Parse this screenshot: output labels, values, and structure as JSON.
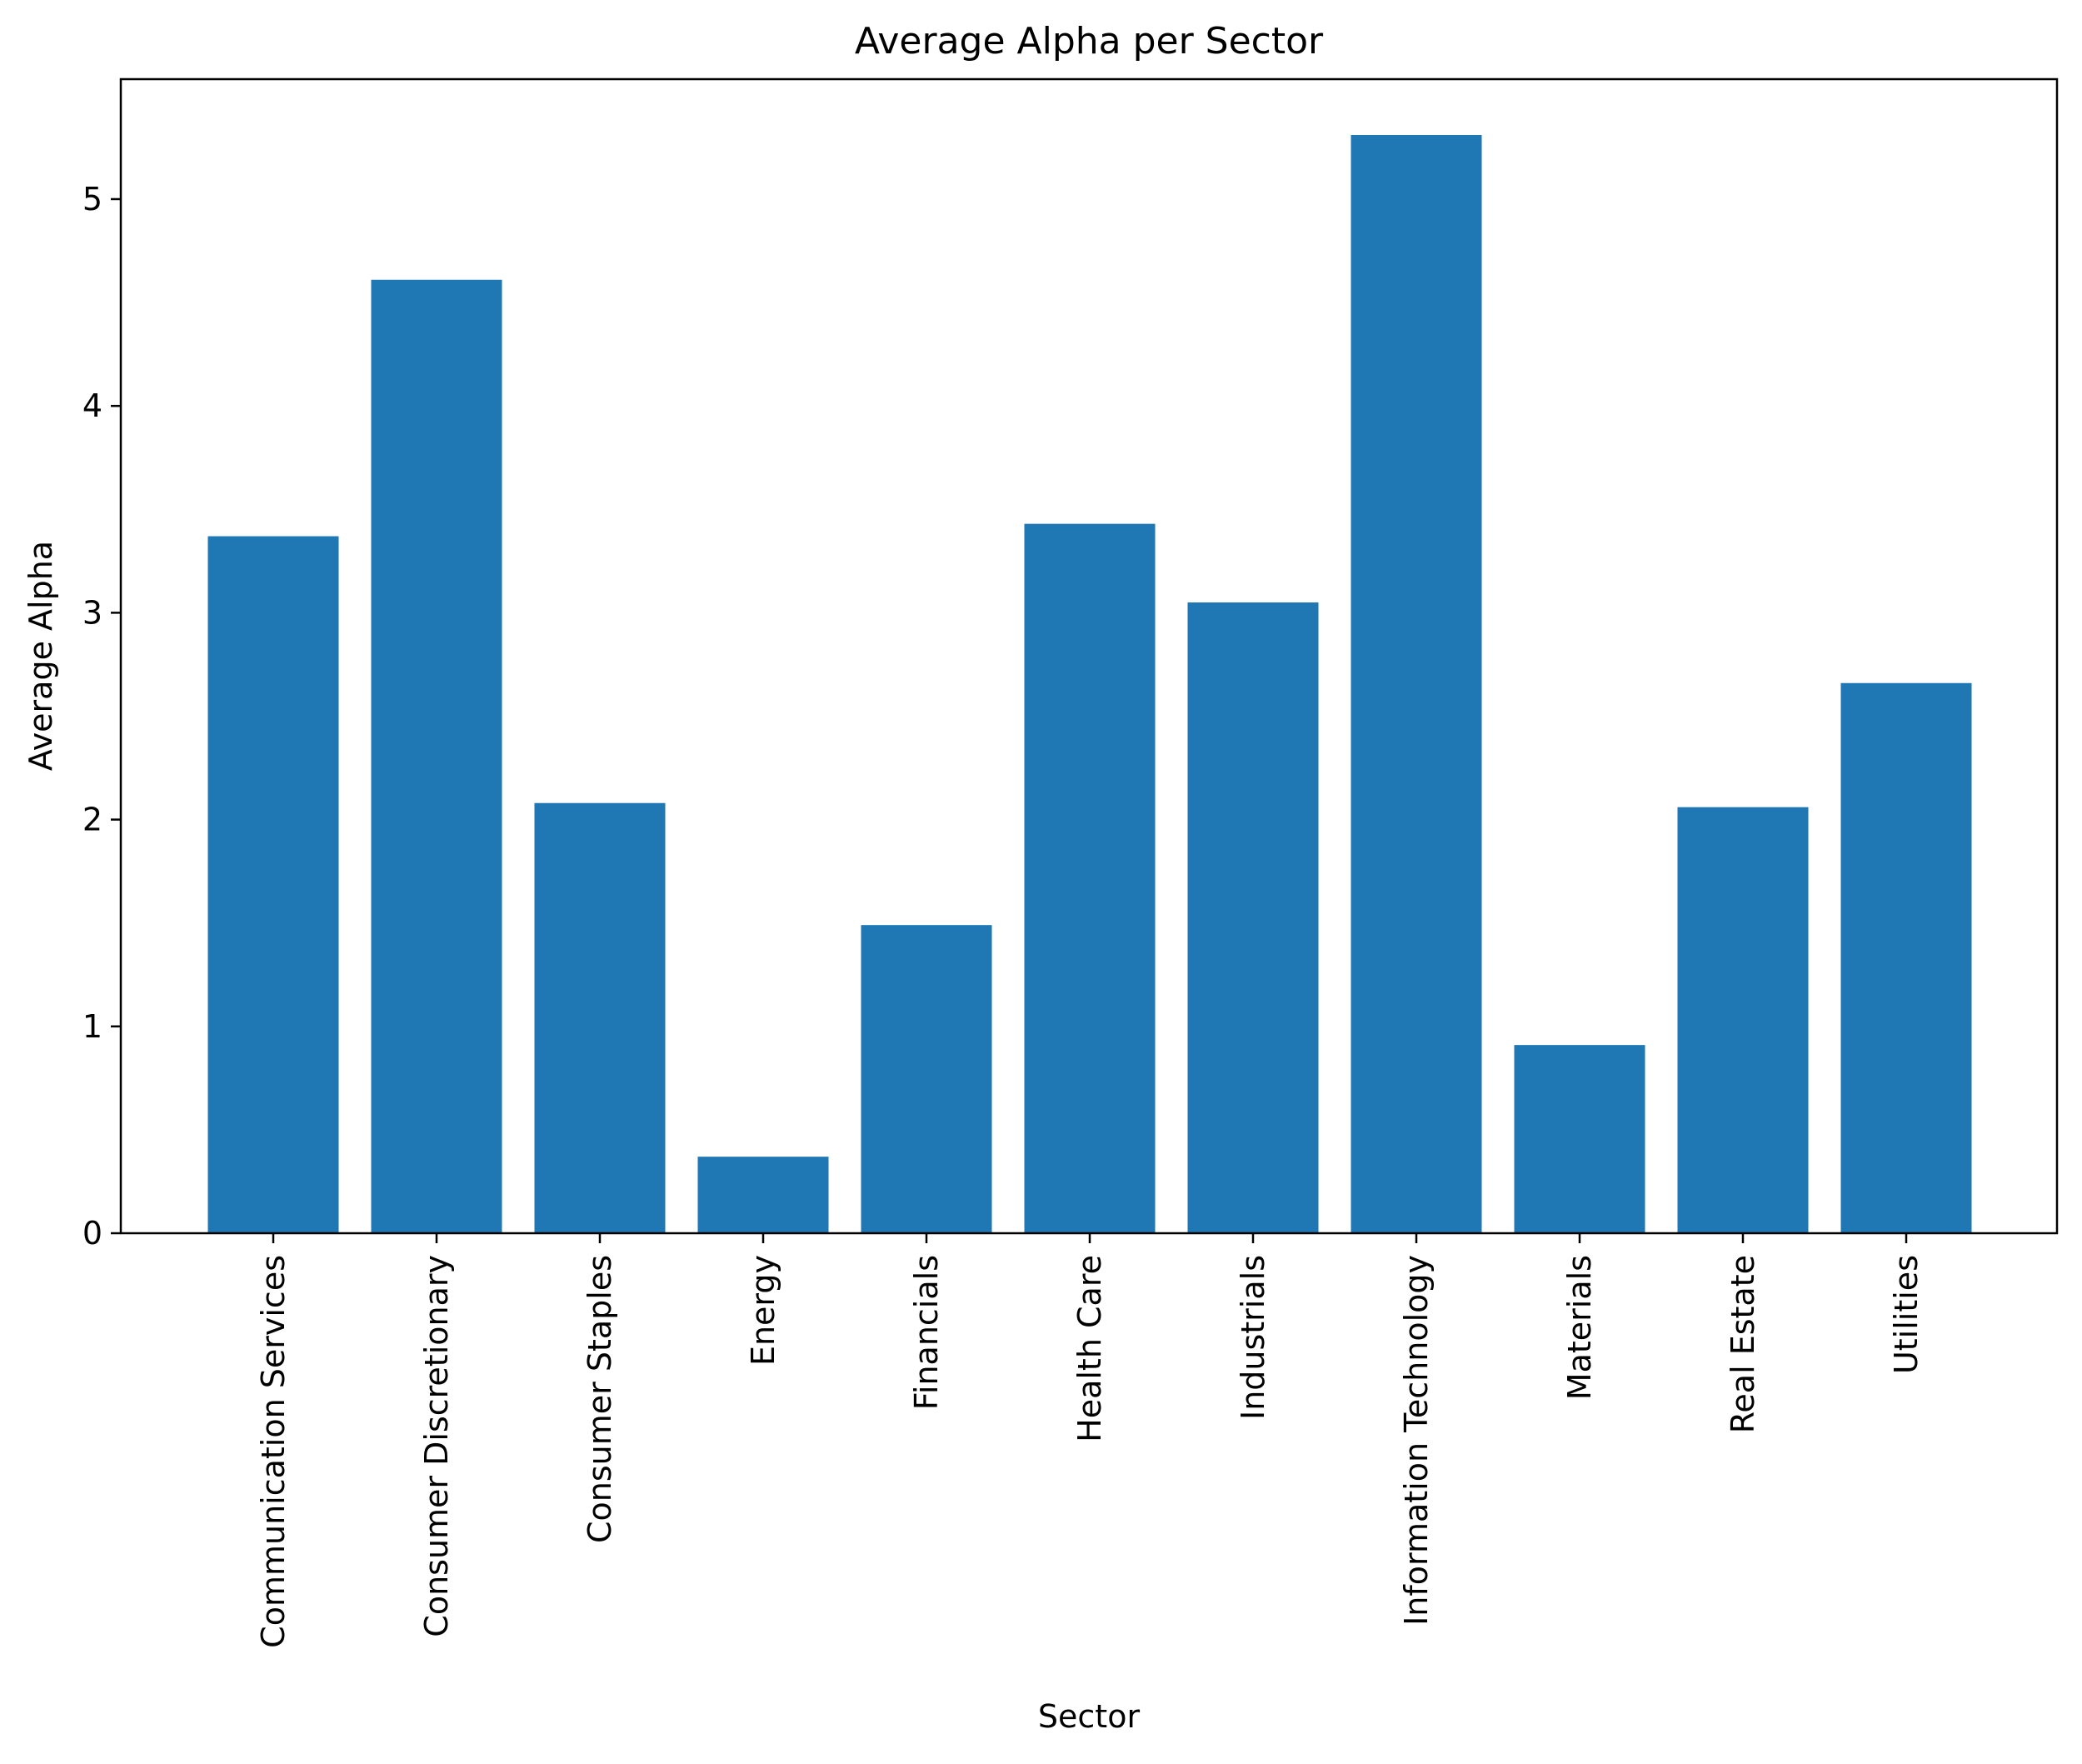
{
  "chart_data": {
    "type": "bar",
    "title": "Average Alpha per Sector",
    "xlabel": "Sector",
    "ylabel": "Average Alpha",
    "categories": [
      "Communication Services",
      "Consumer Discretionary",
      "Consumer Staples",
      "Energy",
      "Financials",
      "Health Care",
      "Industrials",
      "Information Technology",
      "Materials",
      "Real Estate",
      "Utilities"
    ],
    "values": [
      3.37,
      4.61,
      2.08,
      0.37,
      1.49,
      3.43,
      3.05,
      5.31,
      0.91,
      2.06,
      2.66
    ],
    "ylim": [
      0,
      5.58
    ],
    "yticks": [
      0,
      1,
      2,
      3,
      4,
      5
    ],
    "grid": false,
    "legend": "none",
    "bar_color": "#1f77b4"
  }
}
